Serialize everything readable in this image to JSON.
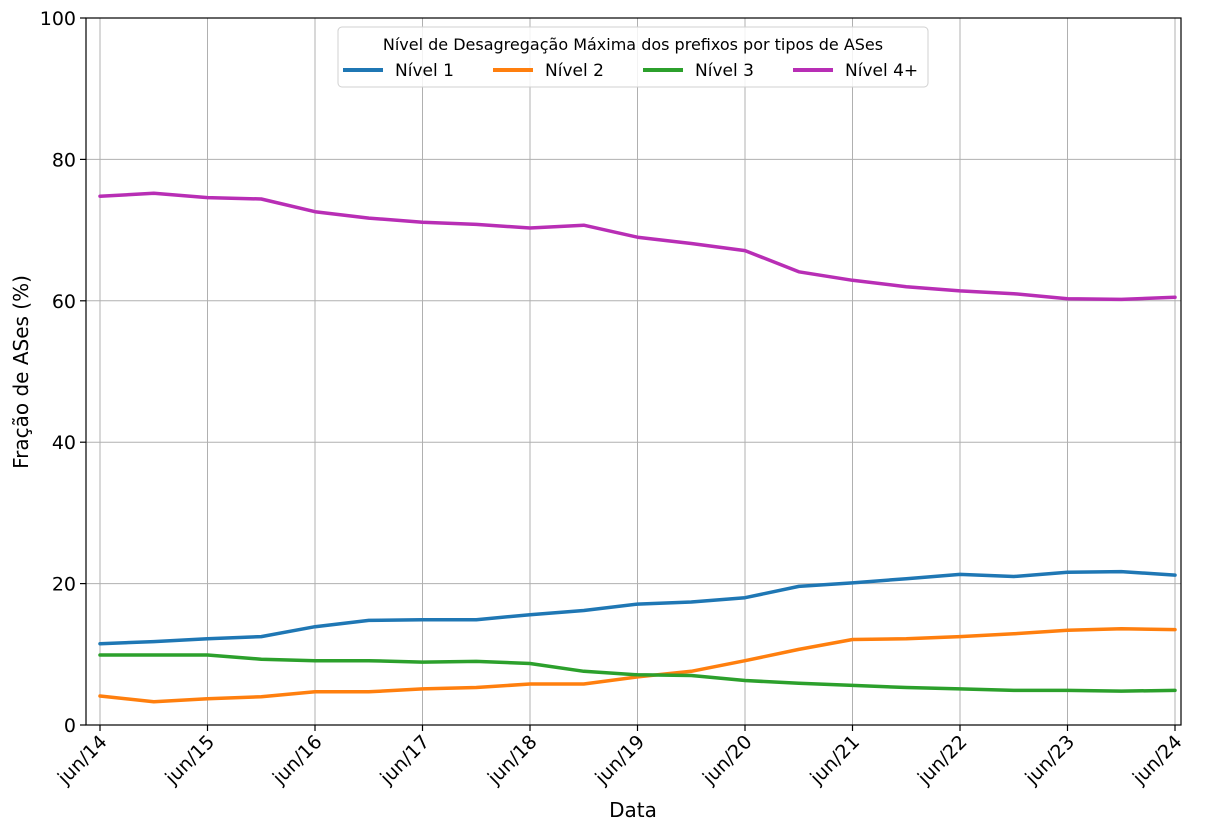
{
  "chart_data": {
    "type": "line",
    "xlabel": "Data",
    "ylabel": "Fração de ASes (%)",
    "ylim": [
      0,
      100
    ],
    "yticks": [
      "0",
      "20",
      "40",
      "60",
      "80",
      "100"
    ],
    "xticks": [
      "jun/14",
      "jun/15",
      "jun/16",
      "jun/17",
      "jun/18",
      "jun/19",
      "jun/20",
      "jun/21",
      "jun/22",
      "jun/23",
      "jun/24"
    ],
    "x": [
      "2014-06",
      "2014-12",
      "2015-06",
      "2015-12",
      "2016-06",
      "2016-12",
      "2017-06",
      "2017-12",
      "2018-06",
      "2018-12",
      "2019-06",
      "2019-12",
      "2020-06",
      "2020-12",
      "2021-06",
      "2021-12",
      "2022-06",
      "2022-12",
      "2023-06",
      "2023-12",
      "2024-06"
    ],
    "grid": true,
    "legend": {
      "title": "Nível de Desagregação Máxima dos prefixos por tipos de ASes",
      "placement": "top-center",
      "columns": 4
    },
    "series": [
      {
        "name": "Nível 1",
        "color": "#1f77b4",
        "values": [
          11.5,
          11.8,
          12.2,
          12.5,
          13.9,
          14.8,
          14.9,
          14.9,
          15.6,
          16.2,
          17.1,
          17.4,
          18.0,
          19.6,
          20.1,
          20.7,
          21.3,
          21.0,
          21.6,
          21.7,
          21.2
        ]
      },
      {
        "name": "Nível 2",
        "color": "#ff7f0e",
        "values": [
          4.1,
          3.3,
          3.7,
          4.0,
          4.7,
          4.7,
          5.1,
          5.3,
          5.8,
          5.8,
          6.8,
          7.6,
          9.1,
          10.7,
          12.1,
          12.2,
          12.5,
          12.9,
          13.4,
          13.6,
          13.5
        ]
      },
      {
        "name": "Nível 3",
        "color": "#2ca02c",
        "values": [
          9.9,
          9.9,
          9.9,
          9.3,
          9.1,
          9.1,
          8.9,
          9.0,
          8.7,
          7.6,
          7.1,
          7.0,
          6.3,
          5.9,
          5.6,
          5.3,
          5.1,
          4.9,
          4.9,
          4.8,
          4.9
        ]
      },
      {
        "name": "Nível 4+",
        "color": "#b82eb5",
        "values": [
          74.8,
          75.2,
          74.6,
          74.4,
          72.6,
          71.7,
          71.1,
          70.8,
          70.3,
          70.7,
          69.0,
          68.1,
          67.1,
          64.1,
          62.9,
          62.0,
          61.4,
          61.0,
          60.3,
          60.2,
          60.5
        ]
      }
    ]
  }
}
